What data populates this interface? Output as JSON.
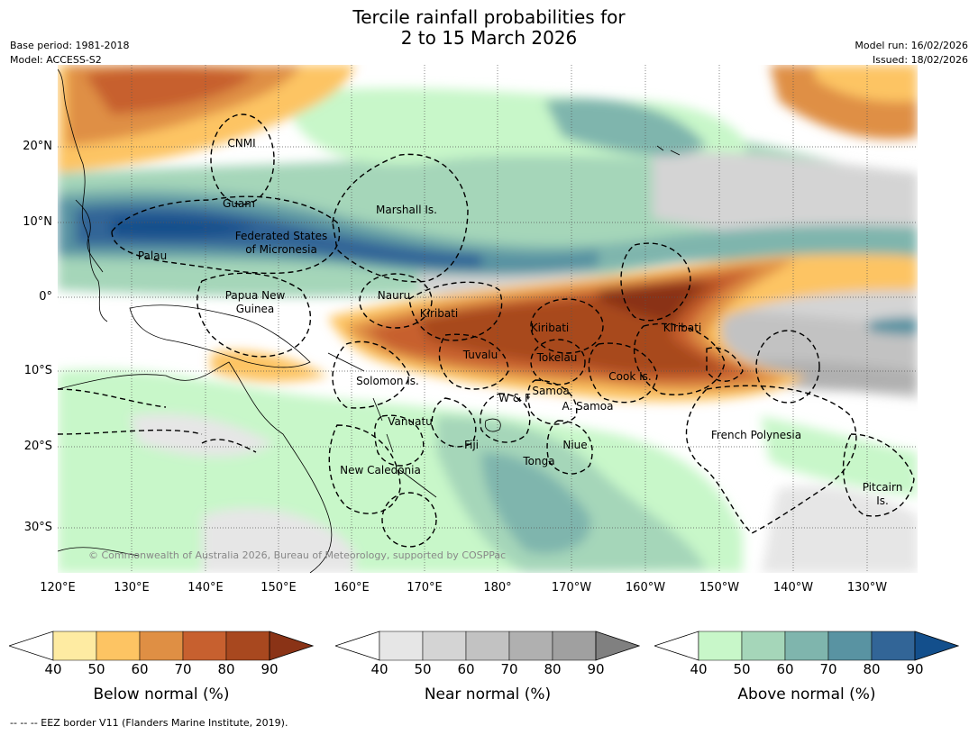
{
  "title": {
    "line1": "Tercile rainfall probabilities for",
    "line2": "2 to 15 March 2026"
  },
  "meta": {
    "base_period": "Base period: 1981-2018",
    "model": "Model: ACCESS-S2",
    "model_run": "Model run: 16/02/2026",
    "issued": "Issued: 18/02/2026"
  },
  "axes": {
    "lat_labels": [
      "20°N",
      "10°N",
      "0°",
      "10°S",
      "20°S",
      "30°S"
    ],
    "lon_labels": [
      "120°E",
      "130°E",
      "140°E",
      "150°E",
      "160°E",
      "170°E",
      "180°",
      "170°W",
      "160°W",
      "150°W",
      "140°W",
      "130°W"
    ]
  },
  "places": {
    "cnmi": "CNMI",
    "guam": "Guam",
    "marshall": "Marshall Is.",
    "fsm_1": "Federated States",
    "fsm_2": "of Micronesia",
    "palau": "Palau",
    "png_1": "Papua New",
    "png_2": "Guinea",
    "nauru": "Nauru",
    "kiribati_w": "Kiribati",
    "kiribati_c": "Kiribati",
    "kiribati_e": "Kiribati",
    "tuvalu": "Tuvalu",
    "tokelau": "Tokelau",
    "cook": "Cook Is.",
    "solomon": "Solomon Is.",
    "wf": "W & F",
    "samoa": "Samoa",
    "asamoa": "A. Samoa",
    "vanuatu": "Vanuatu",
    "fiji": "Fiji",
    "niue": "Niue",
    "tonga": "Tonga",
    "french_polynesia": "French Polynesia",
    "new_caledonia": "New Caledonia",
    "pitcairn_1": "Pitcairn",
    "pitcairn_2": "Is."
  },
  "credit": "© Commonwealth of Australia 2026, Bureau of Meteorology, supported by COSPPac",
  "colorbars": [
    {
      "title": "Below normal (%)",
      "ticks": [
        "40",
        "50",
        "60",
        "70",
        "80",
        "90"
      ],
      "colors": [
        "#ffffff",
        "#feeba2",
        "#fdc463",
        "#df8f44",
        "#c7602f",
        "#a8481f",
        "#8a3316"
      ]
    },
    {
      "title": "Near normal (%)",
      "ticks": [
        "40",
        "50",
        "60",
        "70",
        "80",
        "90"
      ],
      "colors": [
        "#ffffff",
        "#e6e6e6",
        "#d4d4d4",
        "#c2c2c2",
        "#b0b0b0",
        "#a0a0a0",
        "#808080"
      ]
    },
    {
      "title": "Above normal (%)",
      "ticks": [
        "40",
        "50",
        "60",
        "70",
        "80",
        "90"
      ],
      "colors": [
        "#ffffff",
        "#c8f7c9",
        "#a5d6b9",
        "#7fb5ad",
        "#5993a2",
        "#326597",
        "#134f8c"
      ]
    }
  ],
  "footnote": "--  --  -- EEZ border V11 (Flanders Marine Institute, 2019)."
}
